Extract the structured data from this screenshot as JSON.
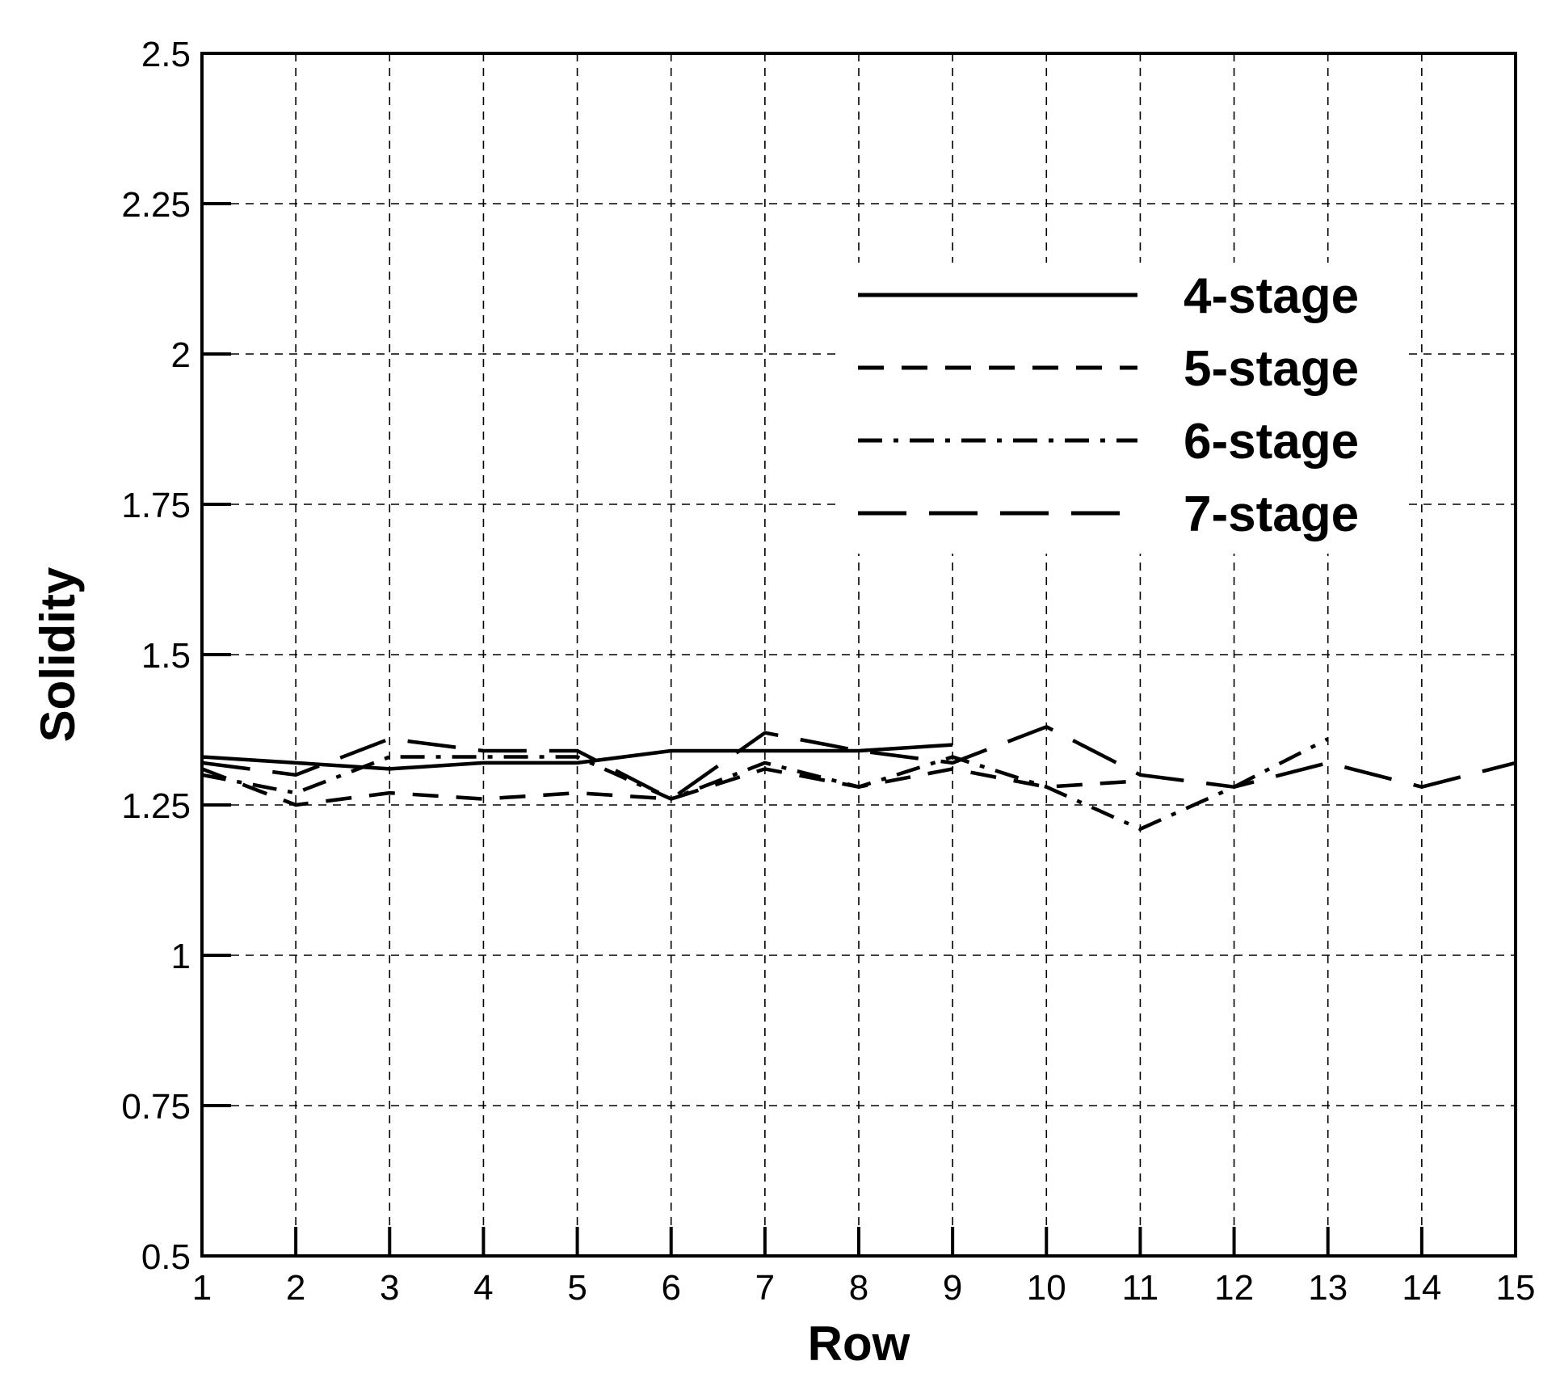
{
  "chart_data": {
    "type": "line",
    "title": "",
    "xlabel": "Row",
    "ylabel": "Solidity",
    "xlim": [
      1,
      15
    ],
    "ylim": [
      0.5,
      2.5
    ],
    "xticks": [
      1,
      2,
      3,
      4,
      5,
      6,
      7,
      8,
      9,
      10,
      11,
      12,
      13,
      14,
      15
    ],
    "xtick_labels": [
      "1",
      "2",
      "3",
      "4",
      "5",
      "6",
      "7",
      "8",
      "9",
      "10",
      "11",
      "12",
      "13",
      "14",
      "15"
    ],
    "yticks": [
      0.5,
      0.75,
      1,
      1.25,
      1.5,
      1.75,
      2,
      2.25,
      2.5
    ],
    "ytick_labels": [
      "0.5",
      "0.75",
      "1",
      "1.25",
      "1.5",
      "1.75",
      "2",
      "2.25",
      "2.5"
    ],
    "grid": true,
    "legend_position": "top-right",
    "series": [
      {
        "name": "4-stage",
        "line_style": "solid",
        "x": [
          1,
          2,
          3,
          4,
          5,
          6,
          7,
          8,
          9
        ],
        "y": [
          1.33,
          1.32,
          1.31,
          1.32,
          1.32,
          1.34,
          1.34,
          1.34,
          1.35
        ]
      },
      {
        "name": "5-stage",
        "line_style": "dashed",
        "x": [
          1,
          2,
          3,
          4,
          5,
          6,
          7,
          8,
          9,
          10,
          11
        ],
        "y": [
          1.31,
          1.25,
          1.27,
          1.26,
          1.27,
          1.26,
          1.31,
          1.28,
          1.31,
          1.28,
          1.29
        ]
      },
      {
        "name": "6-stage",
        "line_style": "dash-dot",
        "x": [
          1,
          2,
          3,
          4,
          5,
          6,
          7,
          8,
          9,
          10,
          11,
          12,
          13
        ],
        "y": [
          1.3,
          1.27,
          1.33,
          1.33,
          1.33,
          1.26,
          1.32,
          1.28,
          1.33,
          1.28,
          1.21,
          1.28,
          1.36
        ]
      },
      {
        "name": "7-stage",
        "line_style": "long-dash",
        "x": [
          1,
          2,
          3,
          4,
          5,
          6,
          7,
          8,
          9,
          10,
          11,
          12,
          13,
          14,
          15
        ],
        "y": [
          1.32,
          1.3,
          1.36,
          1.34,
          1.34,
          1.26,
          1.37,
          1.34,
          1.32,
          1.38,
          1.3,
          1.28,
          1.32,
          1.28,
          1.32
        ]
      }
    ]
  },
  "colors": {
    "line": "#000000",
    "grid": "#000000",
    "background": "#ffffff"
  }
}
